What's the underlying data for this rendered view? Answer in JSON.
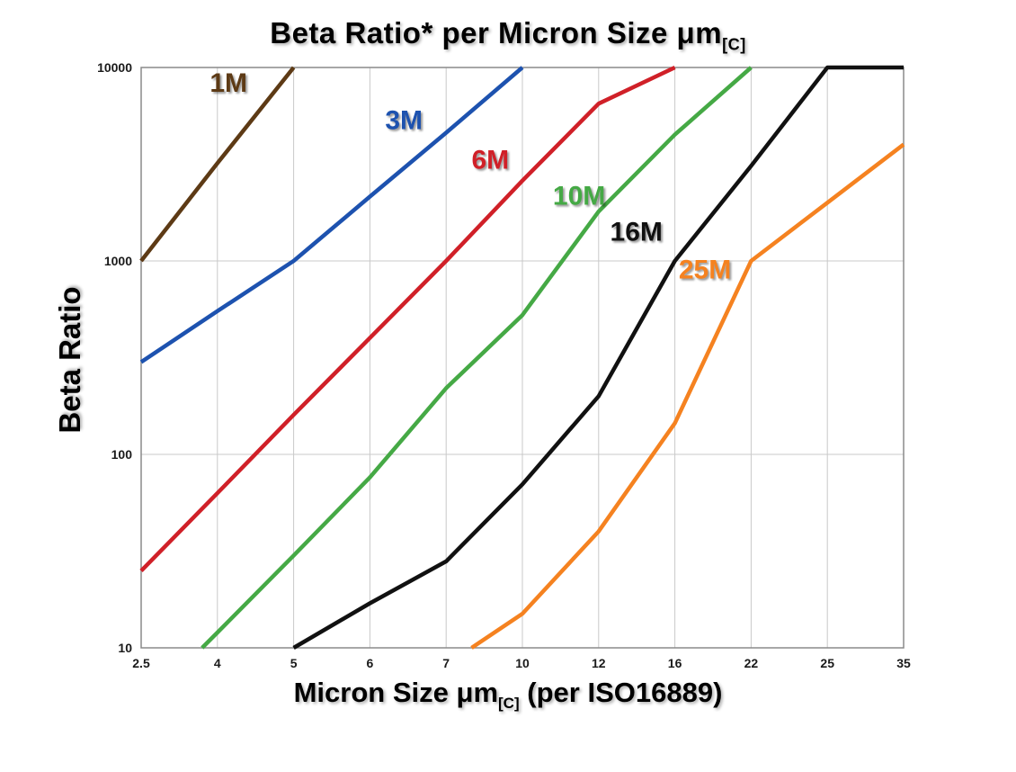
{
  "header": {
    "title_main": "Beta Ratio* per Micron Size μm",
    "title_sub": "[C]"
  },
  "axes": {
    "y_label": "Beta Ratio",
    "x_label_main": "Micron Size μm",
    "x_label_sub": "[C]",
    "x_label_rest": " (per ISO16889)"
  },
  "chart_data": {
    "type": "line",
    "title": "Beta Ratio* per Micron Size μm[C]",
    "xlabel": "Micron Size μm[C] (per ISO16889)",
    "ylabel": "Beta Ratio",
    "x_ticks": [
      2.5,
      4,
      5,
      6,
      7,
      10,
      12,
      16,
      22,
      25,
      35
    ],
    "y_ticks": [
      10,
      100,
      1000,
      10000
    ],
    "y_scale": "log",
    "ylim": [
      10,
      10000
    ],
    "grid": true,
    "legend_position": "inline-labels",
    "series": [
      {
        "name": "1M",
        "color": "#5d3a15",
        "label_x": 3.85,
        "label_y": 7500,
        "points": [
          [
            2.5,
            1000
          ],
          [
            4,
            3200
          ],
          [
            5,
            10000
          ]
        ]
      },
      {
        "name": "3M",
        "color": "#1d52af",
        "label_x": 6.2,
        "label_y": 4800,
        "points": [
          [
            2.5,
            300
          ],
          [
            4,
            550
          ],
          [
            5,
            1000
          ],
          [
            6,
            2150
          ],
          [
            7,
            4600
          ],
          [
            10,
            10000
          ]
        ]
      },
      {
        "name": "6M",
        "color": "#d02028",
        "label_x": 8.0,
        "label_y": 3000,
        "points": [
          [
            2.5,
            25
          ],
          [
            4,
            63
          ],
          [
            5,
            160
          ],
          [
            6,
            400
          ],
          [
            7,
            1000
          ],
          [
            10,
            2600
          ],
          [
            12,
            6500
          ],
          [
            16,
            10000
          ]
        ]
      },
      {
        "name": "10M",
        "color": "#45a945",
        "label_x": 10.8,
        "label_y": 1950,
        "points": [
          [
            3.7,
            10
          ],
          [
            4,
            12
          ],
          [
            5,
            30
          ],
          [
            6,
            76
          ],
          [
            7,
            220
          ],
          [
            10,
            525
          ],
          [
            12,
            1800
          ],
          [
            16,
            4500
          ],
          [
            22,
            10000
          ]
        ]
      },
      {
        "name": "16M",
        "color": "#111111",
        "label_x": 12.6,
        "label_y": 1270,
        "points": [
          [
            5,
            10
          ],
          [
            6,
            17
          ],
          [
            7,
            28
          ],
          [
            10,
            70
          ],
          [
            12,
            200
          ],
          [
            16,
            1000
          ],
          [
            22,
            3100
          ],
          [
            25,
            10000
          ],
          [
            35,
            10000
          ]
        ]
      },
      {
        "name": "25M",
        "color": "#f58220",
        "label_x": 16.3,
        "label_y": 810,
        "points": [
          [
            8,
            10
          ],
          [
            10,
            15
          ],
          [
            12,
            40
          ],
          [
            16,
            145
          ],
          [
            22,
            1000
          ],
          [
            25,
            2000
          ],
          [
            35,
            4000
          ]
        ]
      }
    ]
  }
}
